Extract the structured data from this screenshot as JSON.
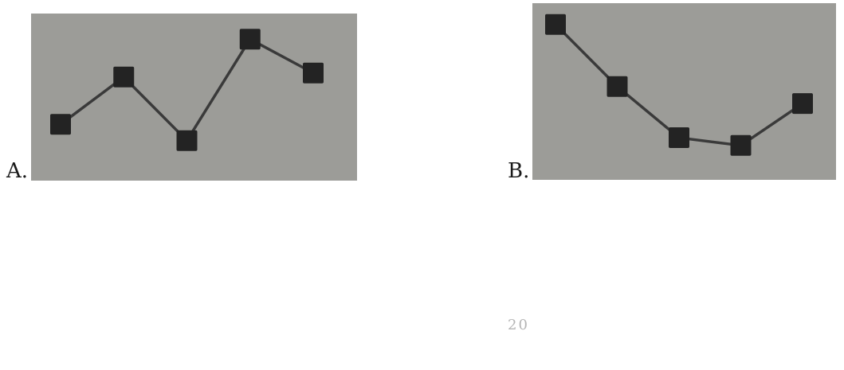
{
  "chart_data": [
    {
      "type": "line",
      "option_label": "A.",
      "x": [
        1,
        2,
        3,
        4,
        5
      ],
      "values": [
        3.1,
        6.6,
        1.9,
        9.4,
        6.9
      ],
      "ylim": [
        0,
        10
      ],
      "grid": false,
      "title": "",
      "xlabel": "",
      "ylabel": ""
    },
    {
      "type": "line",
      "option_label": "B.",
      "x": [
        1,
        2,
        3,
        4,
        5
      ],
      "values": [
        9.4,
        5.4,
        2.1,
        1.6,
        4.3
      ],
      "ylim": [
        0,
        10
      ],
      "grid": false,
      "title": "",
      "xlabel": "",
      "ylabel": ""
    }
  ],
  "colors": {
    "panel_bg": "#9c9c98",
    "line": "#3a3a3a",
    "marker": "#232323"
  },
  "stray_text": "20"
}
